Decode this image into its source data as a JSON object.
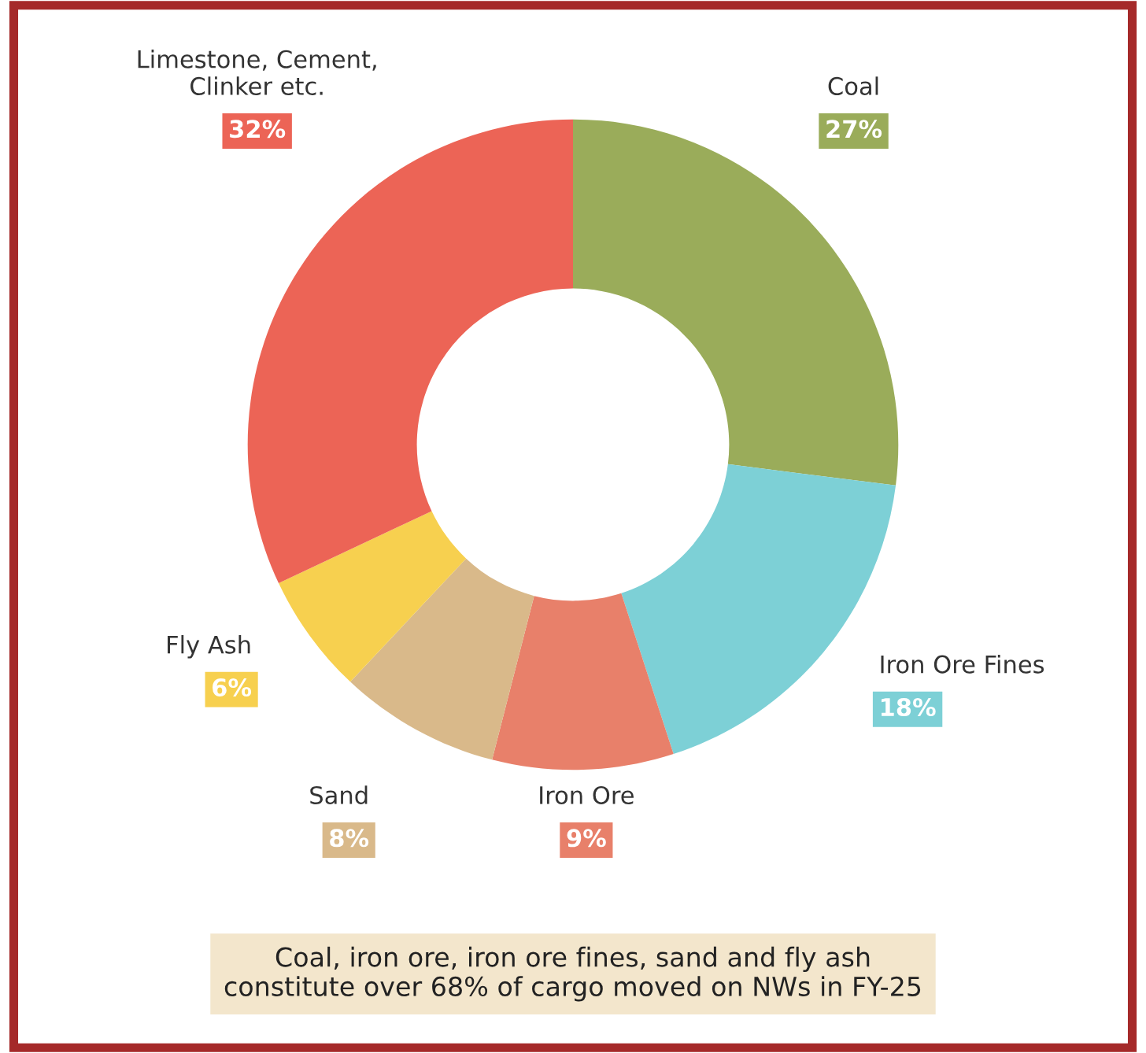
{
  "chart_data": {
    "type": "donut",
    "categories": [
      "Coal",
      "Iron Ore Fines",
      "Iron Ore",
      "Sand",
      "Fly Ash",
      "Limestone, Cement,\nClinker etc."
    ],
    "values": [
      27,
      18,
      9,
      8,
      6,
      32
    ],
    "colors": [
      "#9aac5a",
      "#7dd0d6",
      "#e8806a",
      "#d9b98a",
      "#f7d04f",
      "#ec6456"
    ],
    "value_labels": [
      "27%",
      "18%",
      "9%",
      "8%",
      "6%",
      "32%"
    ],
    "annotations": [
      "Coal, iron ore, iron ore fines, sand and fly ash\nconstitute over 68% of cargo moved on NWs in FY-25"
    ]
  }
}
